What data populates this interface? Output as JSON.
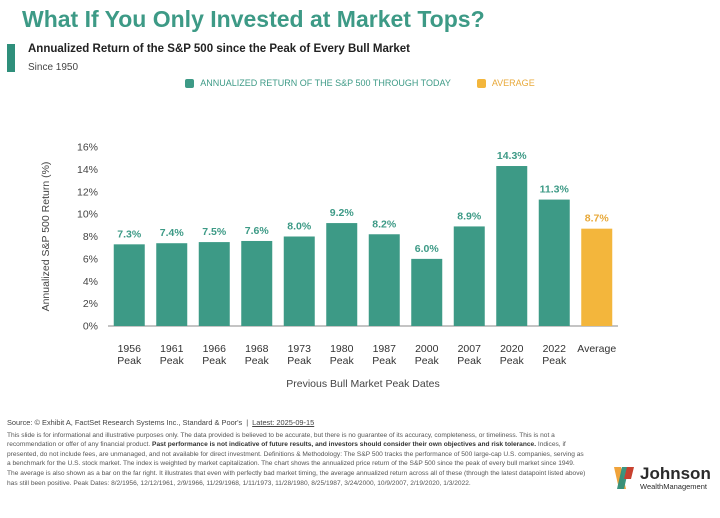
{
  "title": "What If You Only Invested at Market Tops?",
  "subtitle": "Annualized Return of the S&P 500 since the Peak of Every Bull Market",
  "since": "Since 1950",
  "legend": [
    {
      "label": "ANNUALIZED RETURN OF THE S&P 500 THROUGH TODAY",
      "color": "#3d9a86"
    },
    {
      "label": "AVERAGE",
      "color": "#f3b63c"
    }
  ],
  "chart_data": {
    "type": "bar",
    "categories": [
      [
        "1956",
        "Peak"
      ],
      [
        "1961",
        "Peak"
      ],
      [
        "1966",
        "Peak"
      ],
      [
        "1968",
        "Peak"
      ],
      [
        "1973",
        "Peak"
      ],
      [
        "1980",
        "Peak"
      ],
      [
        "1987",
        "Peak"
      ],
      [
        "2000",
        "Peak"
      ],
      [
        "2007",
        "Peak"
      ],
      [
        "2020",
        "Peak"
      ],
      [
        "2022",
        "Peak"
      ],
      [
        "Average"
      ]
    ],
    "values": [
      7.3,
      7.4,
      7.5,
      7.6,
      8.0,
      9.2,
      8.2,
      6.0,
      8.9,
      14.3,
      11.3,
      8.7
    ],
    "labels": [
      "7.3%",
      "7.4%",
      "7.5%",
      "7.6%",
      "8.0%",
      "9.2%",
      "8.2%",
      "6.0%",
      "8.9%",
      "14.3%",
      "11.3%",
      "8.7%"
    ],
    "highlight_index": 11,
    "colors": {
      "bar": "#3d9a86",
      "average": "#f3b63c",
      "average_label": "#e8a93a",
      "bar_label": "#3d9a86"
    },
    "ylabel": "Annualized S&P 500 Return (%)",
    "xlabel": "Previous Bull Market Peak Dates",
    "ylim": [
      0,
      16
    ],
    "yticks": [
      "0%",
      "2%",
      "4%",
      "6%",
      "8%",
      "10%",
      "12%",
      "14%",
      "16%"
    ],
    "grid": false
  },
  "footer": {
    "source": "Source: © Exhibit A, FactSet Research Systems Inc., Standard & Poor's",
    "separator": "|",
    "latest": "Latest: 2025-09-15",
    "disclaimer_1": "This slide is for informational and illustrative purposes only. The data provided is believed to be accurate, but there is no guarantee of its accuracy, completeness, or timeliness. This is not a recommendation or offer of any financial product.",
    "disclaimer_bold": "Past performance is not indicative of future results, and investors should consider their own objectives and risk tolerance.",
    "disclaimer_2": "Indices, if presented, do not include fees, are unmanaged, and not available for direct investment. Definitions & Methodology: The S&P 500 tracks the performance of 500 large-cap U.S. companies, serving as a benchmark for the U.S. stock market. The index is weighted by market capitalization. The chart shows the annualized price return of the S&P 500 since the peak of every bull market since 1949. The average is also shown as a bar on the far right. It illustrates that even with perfectly bad market timing, the average annualized return across all of these (through the latest datapoint listed above) has still been positive. Peak Dates: 8/2/1956, 12/12/1961, 2/9/1966, 11/29/1968, 1/11/1973, 11/28/1980, 8/25/1987, 3/24/2000, 10/9/2007, 2/19/2020, 1/3/2022."
  },
  "logo": {
    "name": "Johnson",
    "sub": "WealthManagement",
    "icon": "johnson-logo-mark-icon"
  }
}
